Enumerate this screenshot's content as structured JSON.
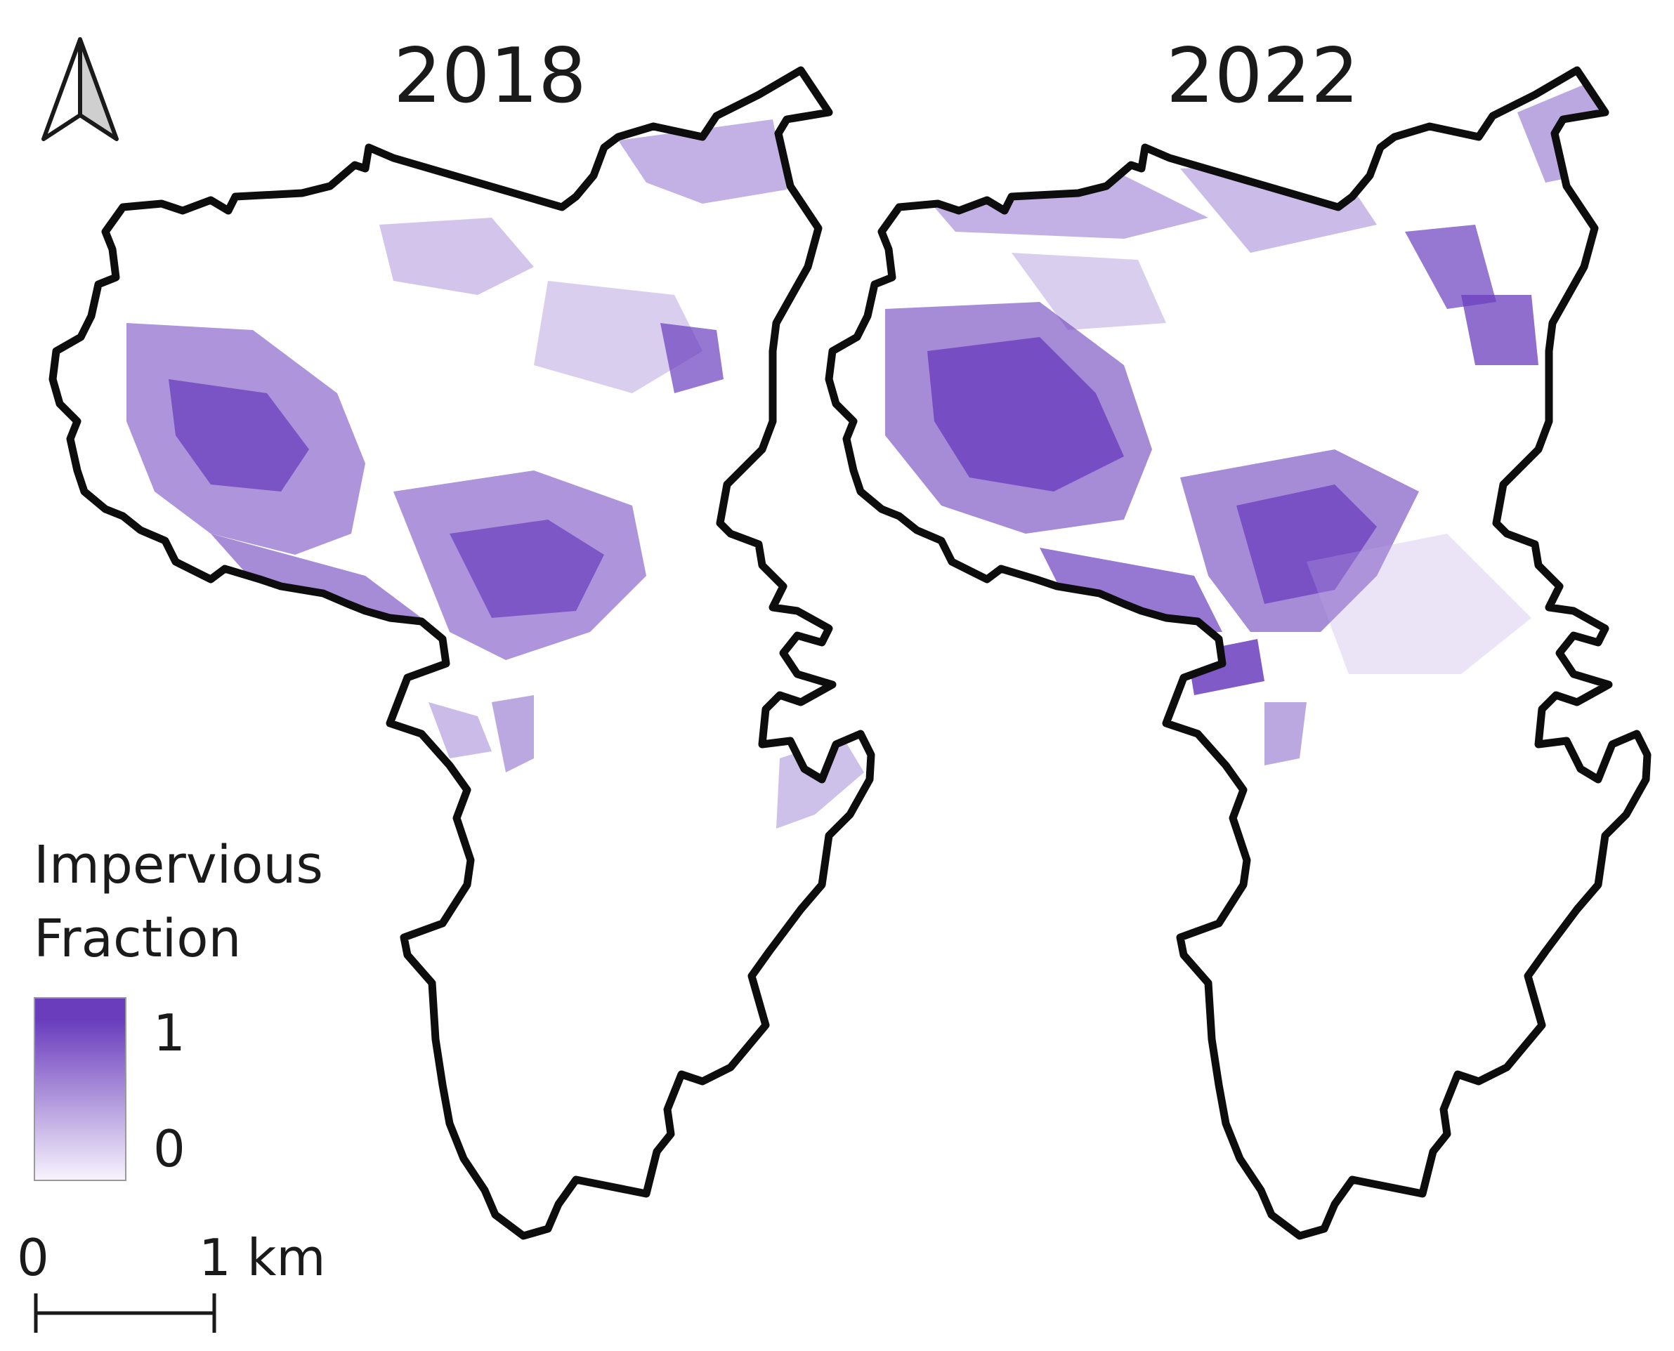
{
  "panels": [
    {
      "title": "2018"
    },
    {
      "title": "2022"
    }
  ],
  "legend": {
    "title_line1": "Impervious",
    "title_line2": "Fraction",
    "max_label": "1",
    "min_label": "0",
    "ramp_colors": [
      "#6a3dbd",
      "#f7f3fc"
    ]
  },
  "scale_bar": {
    "start_label": "0",
    "end_label": "1 km"
  },
  "colors": {
    "boundary": "#0d0d0d",
    "impervious": "#6a3dbd",
    "impervious_light": "#b9a7e0",
    "background": "#ffffff"
  },
  "icons": {
    "north_arrow": "north-arrow-icon"
  }
}
